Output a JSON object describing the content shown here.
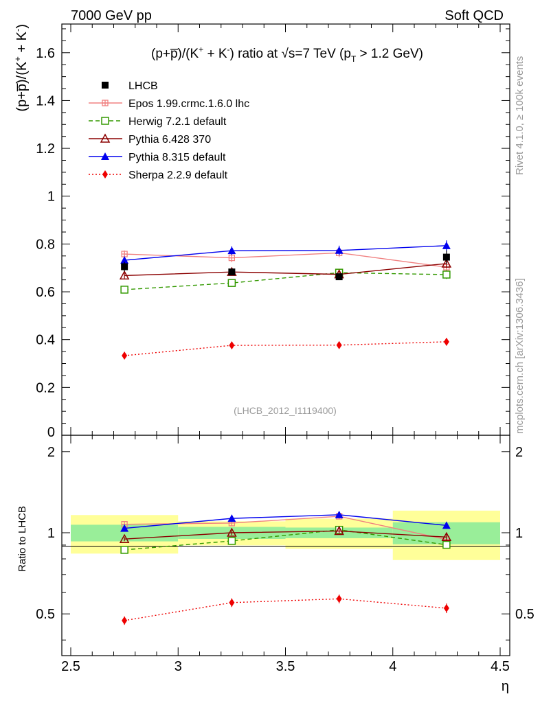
{
  "header": {
    "left": "7000 GeV pp",
    "right": "Soft QCD"
  },
  "side": {
    "rivet": "Rivet 4.1.0, ≥ 100k events",
    "mcplots": "mcplots.cern.ch [arXiv:1306.3436]"
  },
  "chart_data": {
    "type": "line",
    "title": {
      "part1": "(p+p̅)/(K",
      "sup1": "+",
      "part2": " + K",
      "sup2": "-",
      "part3": ") ratio at √s=7 TeV (p",
      "sub": "T",
      "part4": " > 1.2 GeV)"
    },
    "ylabel_parts": {
      "a": "(p+p̅)/(K",
      "sup1": "+",
      "b": " + K",
      "sup2": "-",
      "c": ")"
    },
    "ratio_ylabel": "Ratio to LHCB",
    "xlabel": "η",
    "analysis": "(LHCB_2012_I1119400)",
    "xlim": [
      2.5,
      4.5
    ],
    "ylim": [
      0,
      1.72
    ],
    "ratio_ylim": [
      0.35,
      2.3
    ],
    "x_ticks": [
      "2.5",
      "3",
      "3.5",
      "4",
      "4.5"
    ],
    "y_ticks": [
      "0.2",
      "0.4",
      "0.6",
      "0.8",
      "1",
      "1.2",
      "1.4",
      "1.6"
    ],
    "y_zero_label": "0",
    "ratio_y_ticks": [
      "0.5",
      "1",
      "2"
    ],
    "x": [
      2.75,
      3.25,
      3.75,
      4.25
    ],
    "x_bins": [
      [
        2.5,
        3.0
      ],
      [
        3.0,
        3.5
      ],
      [
        3.5,
        4.0
      ],
      [
        4.0,
        4.5
      ]
    ],
    "data": {
      "name": "LHCB",
      "values": [
        0.705,
        0.683,
        0.663,
        0.745
      ],
      "band_inner": [
        0.05,
        0.035,
        0.03,
        0.07
      ],
      "band_outer": [
        0.115,
        0.07,
        0.085,
        0.155
      ]
    },
    "series": [
      {
        "name": "Epos 1.99.crmc.1.6.0 lhc",
        "color": "#f08080",
        "marker": "cross",
        "dash": "",
        "values": [
          0.758,
          0.742,
          0.763,
          0.703
        ],
        "errors": [
          0.015,
          0.018,
          0.018,
          0.02
        ]
      },
      {
        "name": "Herwig 7.2.1 default",
        "color": "#339900",
        "marker": "open-square",
        "dash": "6,4",
        "values": [
          0.609,
          0.637,
          0.68,
          0.672
        ],
        "errors": [
          0.012,
          0.014,
          0.016,
          0.018
        ]
      },
      {
        "name": "Pythia 6.428 370",
        "color": "#8b0000",
        "marker": "open-triangle",
        "dash": "",
        "values": [
          0.668,
          0.683,
          0.673,
          0.718
        ],
        "errors": [
          0.012,
          0.014,
          0.015,
          0.018
        ]
      },
      {
        "name": "Pythia 8.315 default",
        "color": "#0000ee",
        "marker": "filled-triangle",
        "dash": "",
        "values": [
          0.732,
          0.772,
          0.773,
          0.793
        ],
        "errors": [
          0.015,
          0.018,
          0.02,
          0.022
        ]
      },
      {
        "name": "Sherpa 2.2.9 default",
        "color": "#ee0000",
        "marker": "diamond",
        "dash": "2,3",
        "values": [
          0.333,
          0.376,
          0.377,
          0.391
        ],
        "errors": [
          0.012,
          0.014,
          0.014,
          0.016
        ]
      }
    ]
  }
}
